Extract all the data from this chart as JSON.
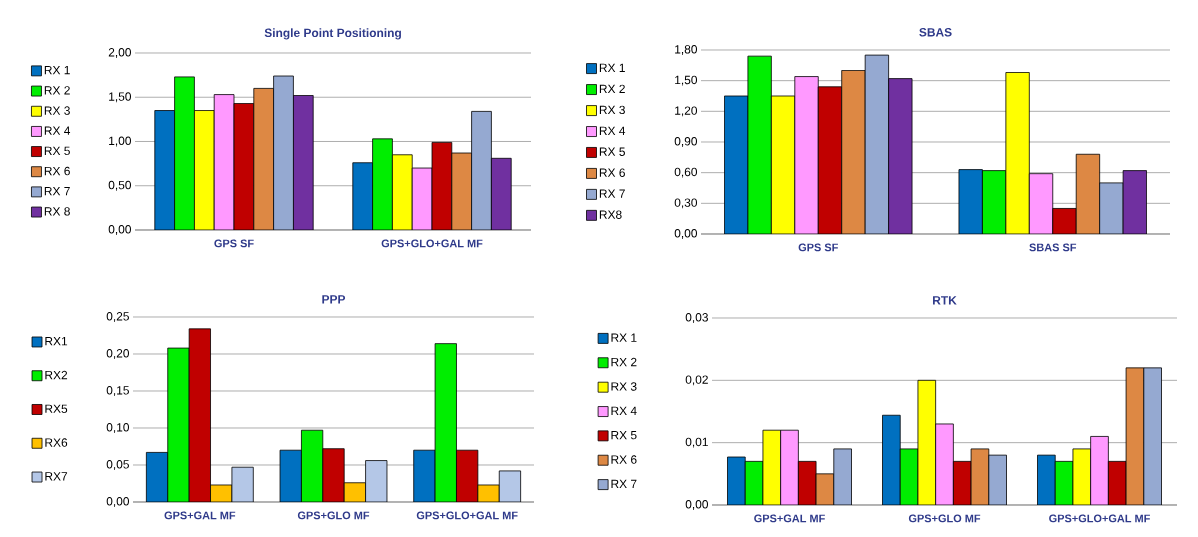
{
  "chart_data": [
    {
      "type": "bar",
      "title": "Single Point Positioning",
      "categories": [
        "GPS SF",
        "GPS+GLO+GAL MF"
      ],
      "series": [
        {
          "name": "RX 1",
          "color": "#0070c0",
          "values": [
            1.35,
            0.76
          ]
        },
        {
          "name": "RX 2",
          "color": "#00ee00",
          "values": [
            1.73,
            1.03
          ]
        },
        {
          "name": "RX 3",
          "color": "#ffff00",
          "values": [
            1.35,
            0.85
          ]
        },
        {
          "name": "RX 4",
          "color": "#ff99ff",
          "values": [
            1.53,
            0.7
          ]
        },
        {
          "name": "RX 5",
          "color": "#c00000",
          "values": [
            1.43,
            0.99
          ]
        },
        {
          "name": "RX 6",
          "color": "#dd8844",
          "values": [
            1.6,
            0.87
          ]
        },
        {
          "name": "RX 7",
          "color": "#95a9d1",
          "values": [
            1.74,
            1.34
          ]
        },
        {
          "name": "RX 8",
          "color": "#7030a0",
          "values": [
            1.52,
            0.81
          ]
        }
      ],
      "ylim": [
        0,
        2
      ],
      "yticks": [
        {
          "value": 0,
          "label": "0,00"
        },
        {
          "value": 0.5,
          "label": "0,50"
        },
        {
          "value": 1,
          "label": "1,00"
        },
        {
          "value": 1.5,
          "label": "1,50"
        },
        {
          "value": 2,
          "label": "2,00"
        }
      ],
      "grid": "y",
      "legend": "left"
    },
    {
      "type": "bar",
      "title": "SBAS",
      "categories": [
        "GPS SF",
        "SBAS SF"
      ],
      "series": [
        {
          "name": "RX 1",
          "color": "#0070c0",
          "values": [
            1.35,
            0.63
          ]
        },
        {
          "name": "RX 2",
          "color": "#00ee00",
          "values": [
            1.74,
            0.62
          ]
        },
        {
          "name": "RX 3",
          "color": "#ffff00",
          "values": [
            1.35,
            1.58
          ]
        },
        {
          "name": "RX 4",
          "color": "#ff99ff",
          "values": [
            1.54,
            0.59
          ]
        },
        {
          "name": "RX 5",
          "color": "#c00000",
          "values": [
            1.44,
            0.25
          ]
        },
        {
          "name": "RX 6",
          "color": "#dd8844",
          "values": [
            1.6,
            0.78
          ]
        },
        {
          "name": "RX 7",
          "color": "#95a9d1",
          "values": [
            1.75,
            0.5
          ]
        },
        {
          "name": "RX8",
          "color": "#7030a0",
          "values": [
            1.52,
            0.62
          ]
        }
      ],
      "ylim": [
        0,
        1.8
      ],
      "yticks": [
        {
          "value": 0,
          "label": "0,00"
        },
        {
          "value": 0.3,
          "label": "0,30"
        },
        {
          "value": 0.6,
          "label": "0,60"
        },
        {
          "value": 0.9,
          "label": "0,90"
        },
        {
          "value": 1.2,
          "label": "1,20"
        },
        {
          "value": 1.5,
          "label": "1,50"
        },
        {
          "value": 1.8,
          "label": "1,80"
        }
      ],
      "grid": "y",
      "legend": "left"
    },
    {
      "type": "bar",
      "title": "PPP",
      "categories": [
        "GPS+GAL MF",
        "GPS+GLO MF",
        "GPS+GLO+GAL MF"
      ],
      "series": [
        {
          "name": "RX1",
          "color": "#0070c0",
          "values": [
            0.067,
            0.07,
            0.07
          ]
        },
        {
          "name": "RX2",
          "color": "#00ee00",
          "values": [
            0.208,
            0.097,
            0.214
          ]
        },
        {
          "name": "RX5",
          "color": "#c00000",
          "values": [
            0.234,
            0.072,
            0.07
          ]
        },
        {
          "name": "RX6",
          "color": "#ffc000",
          "values": [
            0.023,
            0.026,
            0.023
          ]
        },
        {
          "name": "RX7",
          "color": "#b4c7e7",
          "values": [
            0.047,
            0.056,
            0.042
          ]
        }
      ],
      "ylim": [
        0,
        0.25
      ],
      "yticks": [
        {
          "value": 0,
          "label": "0,00"
        },
        {
          "value": 0.05,
          "label": "0,05"
        },
        {
          "value": 0.1,
          "label": "0,10"
        },
        {
          "value": 0.15,
          "label": "0,15"
        },
        {
          "value": 0.2,
          "label": "0,20"
        },
        {
          "value": 0.25,
          "label": "0,25"
        }
      ],
      "grid": "y",
      "legend": "left"
    },
    {
      "type": "bar",
      "title": "RTK",
      "categories": [
        "GPS+GAL MF",
        "GPS+GLO MF",
        "GPS+GLO+GAL MF"
      ],
      "series": [
        {
          "name": "RX 1",
          "color": "#0070c0",
          "values": [
            0.0077,
            0.0144,
            0.008
          ]
        },
        {
          "name": "RX 2",
          "color": "#00ee00",
          "values": [
            0.007,
            0.009,
            0.007
          ]
        },
        {
          "name": "RX 3",
          "color": "#ffff00",
          "values": [
            0.012,
            0.02,
            0.009
          ]
        },
        {
          "name": "RX 4",
          "color": "#ff99ff",
          "values": [
            0.012,
            0.013,
            0.011
          ]
        },
        {
          "name": "RX 5",
          "color": "#c00000",
          "values": [
            0.007,
            0.007,
            0.007
          ]
        },
        {
          "name": "RX 6",
          "color": "#dd8844",
          "values": [
            0.005,
            0.009,
            0.022
          ]
        },
        {
          "name": "RX 7",
          "color": "#95a9d1",
          "values": [
            0.009,
            0.008,
            0.022
          ]
        }
      ],
      "ylim": [
        0,
        0.03
      ],
      "yticks": [
        {
          "value": 0,
          "label": "0,00"
        },
        {
          "value": 0.01,
          "label": "0,01"
        },
        {
          "value": 0.02,
          "label": "0,02"
        },
        {
          "value": 0.03,
          "label": "0,03"
        }
      ],
      "grid": "y",
      "legend": "left"
    }
  ]
}
